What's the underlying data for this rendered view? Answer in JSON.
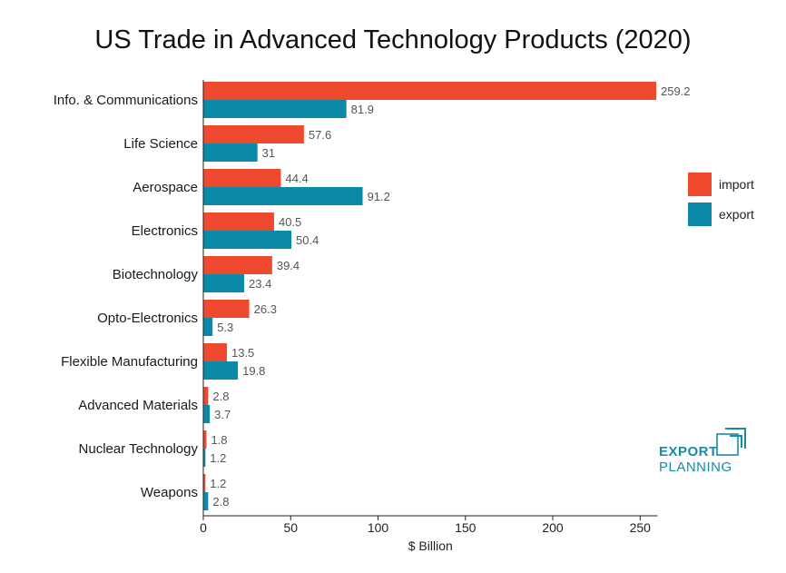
{
  "chart_data": {
    "type": "bar",
    "orientation": "horizontal",
    "title": "US Trade in Advanced Technology Products (2020)",
    "xlabel": "$ Billion",
    "ylabel": "",
    "xlim": [
      0,
      260
    ],
    "xticks": [
      0,
      50,
      100,
      150,
      200,
      250
    ],
    "categories": [
      "Info. & Communications",
      "Life Science",
      "Aerospace",
      "Electronics",
      "Biotechnology",
      "Opto-Electronics",
      "Flexible Manufacturing",
      "Advanced Materials",
      "Nuclear Technology",
      "Weapons"
    ],
    "series": [
      {
        "name": "import",
        "color": "#f04a2e",
        "values": [
          259.2,
          57.6,
          44.4,
          40.5,
          39.4,
          26.3,
          13.5,
          2.8,
          1.8,
          1.2
        ],
        "labels": [
          "259.2",
          "57.6",
          "44.4",
          "40.5",
          "39.4",
          "26.3",
          "13.5",
          "2.8",
          "1.8",
          "1.2"
        ]
      },
      {
        "name": "export",
        "color": "#0a8aa8",
        "values": [
          81.9,
          31,
          91.2,
          50.4,
          23.4,
          5.3,
          19.8,
          3.7,
          1.2,
          2.8
        ],
        "labels": [
          "81.9",
          "31",
          "91.2",
          "50.4",
          "23.4",
          "5.3",
          "19.8",
          "3.7",
          "1.2",
          "2.8"
        ]
      }
    ],
    "legend_position": "right",
    "grid": false
  },
  "logo": {
    "line1": "EXPORT",
    "line2": "PLANNING",
    "color": "#1a8aa6",
    "icon": "export-arrow-icon"
  }
}
